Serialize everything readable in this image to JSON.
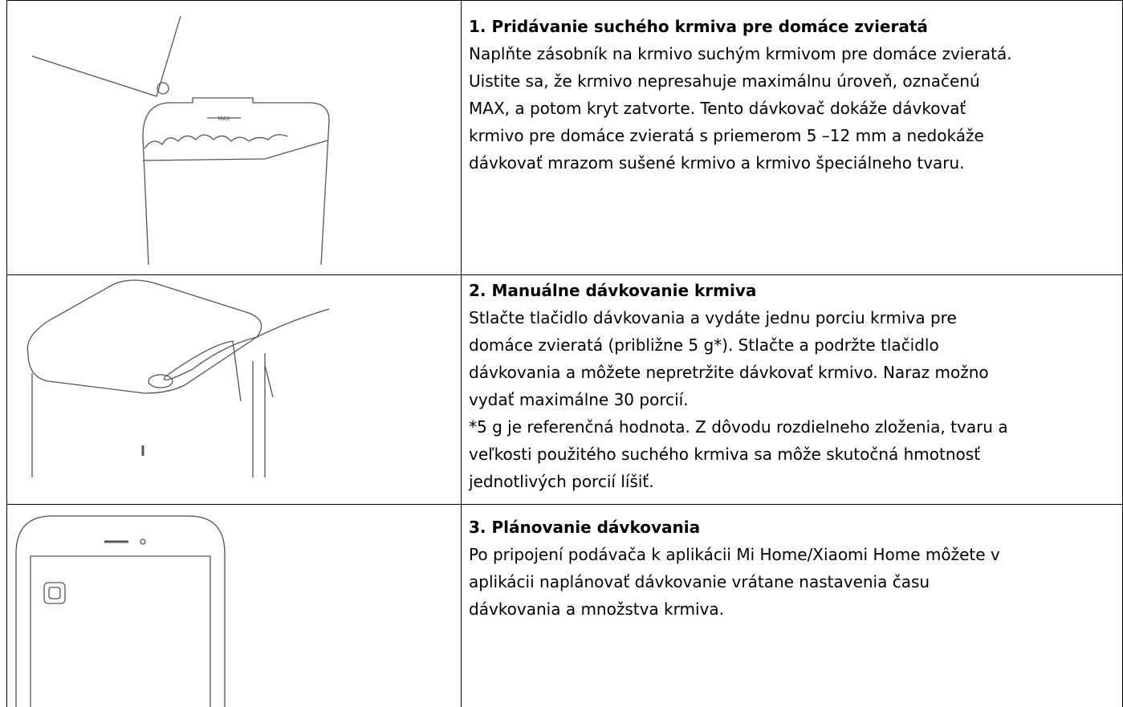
{
  "table": {
    "rows": [
      {
        "title": "1. Pridávanie suchého krmiva pre domáce zvieratá",
        "lines": [
          "Naplňte zásobník na krmivo suchým krmivom pre domáce zvieratá.",
          "Uistite sa, že krmivo nepresahuje maximálnu úroveň, označenú",
          "MAX, a potom kryt zatvorte. Tento dávkovač dokáže dávkovať",
          "krmivo pre domáce zvieratá s priemerom 5 –12 mm a nedokáže",
          "dávkovať mrazom sušené krmivo a krmivo špeciálneho tvaru."
        ],
        "image_label": "MAX"
      },
      {
        "title": "2. Manuálne dávkovanie krmiva",
        "lines": [
          "Stlačte tlačidlo dávkovania a vydáte jednu porciu krmiva pre",
          "domáce zvieratá (približne 5 g*). Stlačte a podržte tlačidlo",
          "dávkovania a môžete nepretržite dávkovať krmivo. Naraz možno",
          "vydať maximálne 30 porcií.",
          "*5 g je referenčná hodnota. Z dôvodu rozdielneho zloženia, tvaru a",
          "veľkosti použitého suchého krmiva sa môže skutočná hmotnosť",
          "jednotlivých porcií líšiť."
        ]
      },
      {
        "title": "3. Plánovanie dávkovania",
        "lines": [
          "Po pripojení podávača k aplikácii Mi Home/Xiaomi Home môžete v",
          "aplikácii naplánovať dávkovanie vrátane nastavenia času",
          "dávkovania a množstva krmiva."
        ]
      }
    ]
  }
}
